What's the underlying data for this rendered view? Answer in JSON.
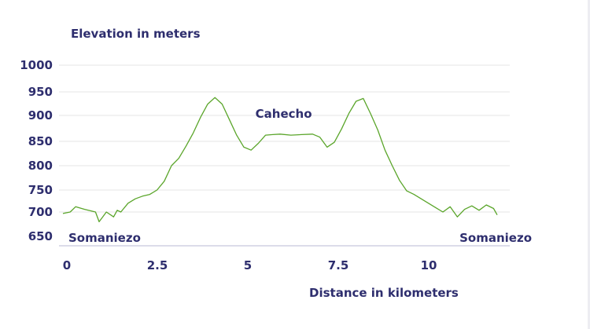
{
  "chart_data": {
    "type": "line",
    "ylabel": "Elevation in meters",
    "xlabel": "Distance in kilometers",
    "xlim": [
      0,
      12
    ],
    "ylim": [
      620,
      1000
    ],
    "y_ticks": [
      "650",
      "700",
      "750",
      "800",
      "850",
      "900",
      "950",
      "1000"
    ],
    "x_ticks": [
      "0",
      "2.5",
      "5",
      "7.5",
      "10"
    ],
    "grid": true,
    "annotations": [
      {
        "text": "Somaniezo",
        "x": 0.2,
        "y": 650
      },
      {
        "text": "Cahecho",
        "x": 6.1,
        "y": 885
      },
      {
        "text": "Somaniezo",
        "x": 11.7,
        "y": 650
      }
    ],
    "series": [
      {
        "color": "#5aa52a",
        "x": [
          0.0,
          0.2,
          0.35,
          0.6,
          0.9,
          1.0,
          1.1,
          1.2,
          1.4,
          1.5,
          1.6,
          1.8,
          2.0,
          2.2,
          2.4,
          2.6,
          2.8,
          3.0,
          3.2,
          3.4,
          3.6,
          3.8,
          4.0,
          4.2,
          4.4,
          4.6,
          4.8,
          5.0,
          5.2,
          5.4,
          5.6,
          5.8,
          6.0,
          6.3,
          6.6,
          6.9,
          7.1,
          7.3,
          7.5,
          7.7,
          7.9,
          8.1,
          8.3,
          8.5,
          8.7,
          8.9,
          9.1,
          9.3,
          9.5,
          9.7,
          9.9,
          10.1,
          10.3,
          10.5,
          10.7,
          10.9,
          11.1,
          11.3,
          11.5,
          11.7,
          11.9,
          12.0
        ],
        "y": [
          697,
          700,
          712,
          706,
          700,
          680,
          690,
          700,
          690,
          704,
          700,
          720,
          730,
          736,
          740,
          750,
          768,
          800,
          815,
          840,
          866,
          896,
          924,
          938,
          924,
          892,
          862,
          838,
          832,
          846,
          862,
          863,
          864,
          862,
          863,
          864,
          858,
          838,
          848,
          874,
          904,
          930,
          936,
          904,
          872,
          832,
          800,
          770,
          748,
          740,
          730,
          720,
          710,
          700,
          712,
          690,
          706,
          714,
          704,
          716,
          708,
          694
        ]
      }
    ]
  }
}
